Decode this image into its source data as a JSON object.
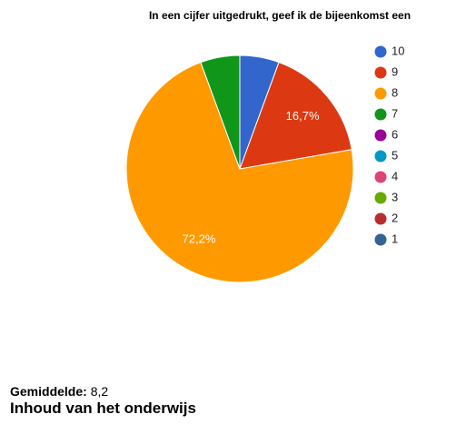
{
  "chart_data": {
    "type": "pie",
    "title": "In een cijfer uitgedrukt, geef ik de bijeenkomst een",
    "categories": [
      "10",
      "9",
      "8",
      "7",
      "6",
      "5",
      "4",
      "3",
      "2",
      "1"
    ],
    "values": [
      5.6,
      16.7,
      72.2,
      5.6,
      0,
      0,
      0,
      0,
      0,
      0
    ],
    "value_labels": [
      null,
      "16,7%",
      "72,2%",
      null,
      null,
      null,
      null,
      null,
      null,
      null
    ],
    "colors": [
      "#3366cc",
      "#dc3912",
      "#ff9900",
      "#109618",
      "#990099",
      "#0099c6",
      "#dd4477",
      "#66aa00",
      "#b82e2e",
      "#316395"
    ],
    "legend": "right"
  },
  "summary": {
    "label": "Gemiddelde:",
    "value": "8,2"
  },
  "next_heading": "Inhoud van het onderwijs"
}
